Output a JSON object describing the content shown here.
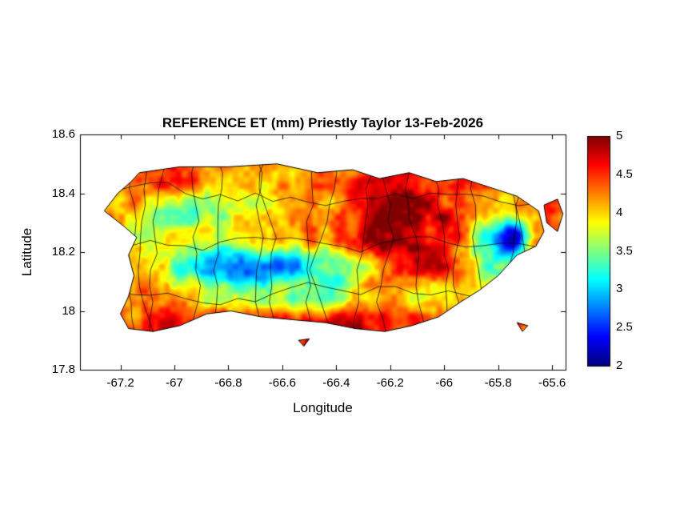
{
  "chart_data": {
    "type": "heatmap",
    "title": "REFERENCE ET (mm) Priestly Taylor 13-Feb-2026",
    "xlabel": "Longitude",
    "ylabel": "Latitude",
    "xlim": [
      -67.35,
      -65.55
    ],
    "ylim": [
      17.8,
      18.6
    ],
    "xticks": [
      -67.2,
      -67,
      -66.8,
      -66.6,
      -66.4,
      -66.2,
      -66,
      -65.8,
      -65.6
    ],
    "xtick_labels": [
      "-67.2",
      "-67",
      "-66.8",
      "-66.6",
      "-66.4",
      "-66.2",
      "-66",
      "-65.8",
      "-65.6"
    ],
    "yticks": [
      17.8,
      18,
      18.2,
      18.4,
      18.6
    ],
    "ytick_labels": [
      "17.8",
      "18",
      "18.2",
      "18.4",
      "18.6"
    ],
    "colormap": "jet",
    "clim": [
      2,
      5
    ],
    "colorbar_ticks": [
      2,
      2.5,
      3,
      3.5,
      4,
      4.5,
      5
    ],
    "colorbar_tick_labels": [
      "2",
      "2.5",
      "3",
      "3.5",
      "4",
      "4.5",
      "5"
    ],
    "legend_position": "colorbar-right",
    "grid_lines": false,
    "colors": {
      "background": "#ffffff",
      "axis": "#000000",
      "text": "#000000",
      "coastline": "#000000"
    },
    "grid": {
      "lon_start": -67.35,
      "lon_step": 0.1,
      "lat_start": 18.55,
      "lat_step": -0.1,
      "values": [
        [
          4.4,
          4.4,
          4.4,
          4.5,
          4.5,
          4.4,
          4.3,
          4.2,
          4.3,
          4.4,
          4.5,
          4.6,
          4.6,
          4.5,
          4.4,
          4.4,
          4.3,
          4.3,
          4.3
        ],
        [
          4.3,
          4.3,
          4.4,
          4.4,
          4.3,
          4.1,
          4.0,
          4.0,
          4.2,
          4.3,
          4.4,
          4.7,
          4.8,
          4.6,
          4.4,
          4.3,
          4.2,
          4.4,
          4.4
        ],
        [
          4.2,
          4.2,
          4.1,
          3.5,
          3.4,
          3.5,
          3.7,
          4.0,
          4.1,
          4.2,
          4.4,
          4.9,
          5.0,
          4.8,
          4.5,
          4.2,
          4.0,
          4.3,
          4.4
        ],
        [
          4.1,
          4.0,
          3.9,
          3.9,
          3.7,
          3.8,
          3.9,
          4.1,
          4.2,
          4.3,
          4.5,
          5.0,
          5.0,
          4.7,
          4.5,
          3.4,
          2.2,
          4.0,
          4.3
        ],
        [
          4.2,
          4.2,
          4.1,
          3.8,
          3.3,
          2.9,
          2.6,
          2.7,
          2.9,
          3.2,
          3.5,
          4.0,
          4.5,
          4.7,
          4.3,
          3.5,
          3.4,
          4.2,
          4.3
        ],
        [
          4.3,
          4.2,
          4.3,
          4.2,
          4.0,
          3.8,
          3.7,
          3.7,
          3.5,
          3.4,
          3.8,
          4.0,
          4.1,
          3.8,
          3.9,
          4.1,
          4.3,
          4.4,
          4.4
        ],
        [
          4.5,
          4.5,
          4.4,
          4.6,
          4.6,
          4.7,
          4.7,
          4.7,
          4.6,
          4.6,
          4.7,
          4.6,
          4.5,
          4.5,
          4.6,
          4.6,
          4.6,
          4.5,
          4.5
        ],
        [
          4.6,
          4.6,
          4.5,
          4.6,
          4.7,
          4.7,
          4.7,
          4.7,
          4.7,
          4.7,
          4.7,
          4.6,
          4.6,
          4.6,
          4.6,
          4.6,
          4.6,
          4.5,
          4.5
        ]
      ]
    },
    "regions": {
      "main_island": [
        [
          -67.13,
          18.47
        ],
        [
          -66.98,
          18.49
        ],
        [
          -66.8,
          18.49
        ],
        [
          -66.62,
          18.5
        ],
        [
          -66.47,
          18.47
        ],
        [
          -66.34,
          18.48
        ],
        [
          -66.24,
          18.45
        ],
        [
          -66.13,
          18.47
        ],
        [
          -66.03,
          18.44
        ],
        [
          -65.93,
          18.45
        ],
        [
          -65.83,
          18.42
        ],
        [
          -65.73,
          18.39
        ],
        [
          -65.65,
          18.34
        ],
        [
          -65.63,
          18.27
        ],
        [
          -65.66,
          18.22
        ],
        [
          -65.73,
          18.19
        ],
        [
          -65.8,
          18.12
        ],
        [
          -65.87,
          18.07
        ],
        [
          -65.94,
          18.03
        ],
        [
          -66.02,
          17.98
        ],
        [
          -66.12,
          17.95
        ],
        [
          -66.22,
          17.93
        ],
        [
          -66.33,
          17.94
        ],
        [
          -66.44,
          17.96
        ],
        [
          -66.56,
          17.97
        ],
        [
          -66.68,
          17.98
        ],
        [
          -66.79,
          18.0
        ],
        [
          -66.88,
          17.99
        ],
        [
          -66.98,
          17.95
        ],
        [
          -67.08,
          17.93
        ],
        [
          -67.17,
          17.94
        ],
        [
          -67.2,
          17.99
        ],
        [
          -67.17,
          18.05
        ],
        [
          -67.15,
          18.12
        ],
        [
          -67.17,
          18.19
        ],
        [
          -67.14,
          18.25
        ],
        [
          -67.19,
          18.29
        ],
        [
          -67.26,
          18.34
        ],
        [
          -67.21,
          18.4
        ],
        [
          -67.16,
          18.44
        ]
      ],
      "islets": [
        [
          [
            -65.63,
            18.36
          ],
          [
            -65.58,
            18.38
          ],
          [
            -65.56,
            18.33
          ],
          [
            -65.58,
            18.27
          ],
          [
            -65.62,
            18.3
          ]
        ],
        [
          [
            -66.54,
            17.9
          ],
          [
            -66.5,
            17.905
          ],
          [
            -66.52,
            17.88
          ]
        ],
        [
          [
            -65.73,
            17.96
          ],
          [
            -65.69,
            17.95
          ],
          [
            -65.71,
            17.93
          ]
        ]
      ]
    },
    "noise": {
      "seed": 11,
      "amplitude": 0.42
    },
    "boundaries": {
      "seed": 3,
      "vertical_lines": 17,
      "horizontal_lats": [
        18.38,
        18.23,
        18.07
      ],
      "color": "#000000"
    }
  }
}
